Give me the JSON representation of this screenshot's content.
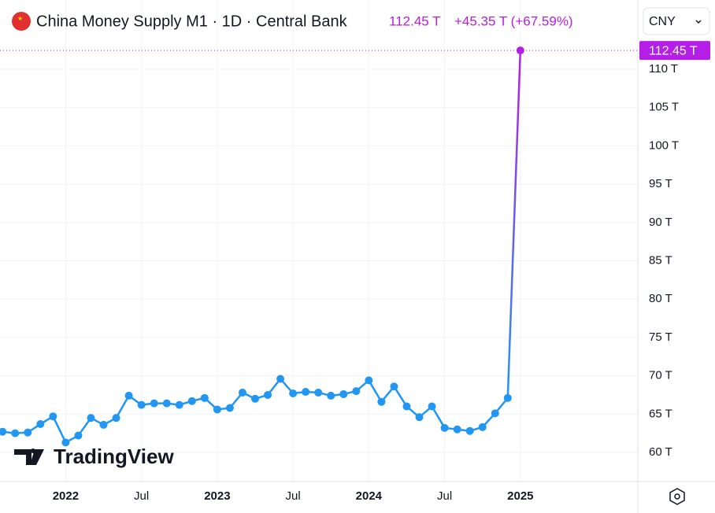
{
  "chart_data": {
    "type": "line",
    "title": "China Money Supply M1 · 1D · Central Bank",
    "last_value_label": "112.45 T",
    "change_label": "+45.35 T (+67.59%)",
    "currency": "CNY",
    "watermark": "TradingView",
    "series": [
      {
        "name": "China Money Supply M1",
        "color": "#2196f3",
        "last_color": "#b51ee6",
        "values": [
          62.7,
          62.5,
          62.6,
          63.7,
          64.7,
          61.3,
          62.2,
          64.5,
          63.6,
          64.5,
          67.4,
          66.2,
          66.4,
          66.4,
          66.2,
          66.7,
          67.1,
          65.6,
          65.8,
          67.8,
          67.0,
          67.5,
          69.6,
          67.7,
          67.9,
          67.8,
          67.4,
          67.6,
          68.0,
          69.4,
          66.6,
          68.6,
          66.0,
          64.6,
          66.0,
          63.2,
          63.0,
          62.8,
          63.3,
          65.1,
          67.1,
          112.45
        ]
      }
    ],
    "xlim": [
      -0.2,
      50.3
    ],
    "xticks": [
      {
        "value": 5,
        "label": "2022"
      },
      {
        "value": 11,
        "label": "Jul"
      },
      {
        "value": 17,
        "label": "2023"
      },
      {
        "value": 23,
        "label": "Jul"
      },
      {
        "value": 29,
        "label": "2024"
      },
      {
        "value": 35,
        "label": "Jul"
      },
      {
        "value": 41,
        "label": "2025"
      }
    ],
    "ylim": [
      56.2,
      113.9
    ],
    "yticks": [
      {
        "value": 60,
        "label": "60 T"
      },
      {
        "value": 65,
        "label": "65 T"
      },
      {
        "value": 70,
        "label": "70 T"
      },
      {
        "value": 75,
        "label": "75 T"
      },
      {
        "value": 80,
        "label": "80 T"
      },
      {
        "value": 85,
        "label": "85 T"
      },
      {
        "value": 90,
        "label": "90 T"
      },
      {
        "value": 95,
        "label": "95 T"
      },
      {
        "value": 100,
        "label": "100 T"
      },
      {
        "value": 105,
        "label": "105 T"
      },
      {
        "value": 110,
        "label": "110 T"
      }
    ],
    "grid": true
  }
}
